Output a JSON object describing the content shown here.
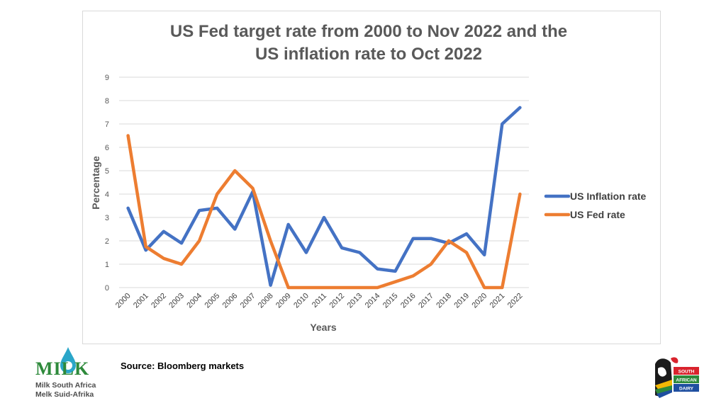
{
  "chart_data": {
    "type": "line",
    "title": "US Fed target rate from 2000 to Nov 2022 and the\nUS inflation rate to Oct 2022",
    "xlabel": "Years",
    "ylabel": "Percentage",
    "ylim": [
      0,
      9
    ],
    "yticks": [
      0,
      1,
      2,
      3,
      4,
      5,
      6,
      7,
      8,
      9
    ],
    "grid": true,
    "legend": "right",
    "x": [
      "2000",
      "2001",
      "2002",
      "2003",
      "2004",
      "2005",
      "2006",
      "2007",
      "2008",
      "2009",
      "2010",
      "2011",
      "2012",
      "2013",
      "2014",
      "2015",
      "2016",
      "2017",
      "2018",
      "2019",
      "2020",
      "2021",
      "2022"
    ],
    "series": [
      {
        "name": "US Inflation rate",
        "color": "#4472c4",
        "values": [
          3.4,
          1.6,
          2.4,
          1.9,
          3.3,
          3.4,
          2.5,
          4.1,
          0.1,
          2.7,
          1.5,
          3.0,
          1.7,
          1.5,
          0.8,
          0.7,
          2.1,
          2.1,
          1.9,
          2.3,
          1.4,
          7.0,
          7.7
        ]
      },
      {
        "name": "US Fed rate",
        "color": "#ed7d31",
        "values": [
          6.5,
          1.75,
          1.25,
          1.0,
          2.0,
          4.0,
          5.0,
          4.25,
          2.0,
          0.0,
          0.0,
          0.0,
          0.0,
          0.0,
          0.0,
          0.25,
          0.5,
          1.0,
          2.0,
          1.5,
          0.0,
          0.0,
          4.0
        ]
      }
    ]
  },
  "footer": {
    "source": "Source: Bloomberg markets"
  },
  "logos": {
    "left_wordmark": "MILK",
    "left_line1": "Milk South Africa",
    "left_line2": "Melk Suid-Afrika",
    "right_line1": "SOUTH",
    "right_line2": "AFRICAN",
    "right_line3": "DAIRY"
  }
}
